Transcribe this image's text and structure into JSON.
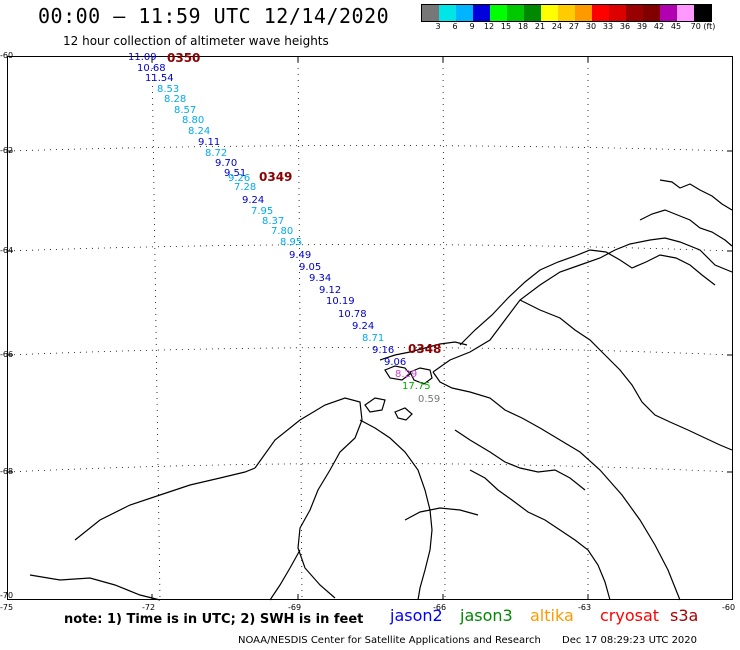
{
  "header": {
    "title": "00:00 – 11:59 UTC 12/14/2020",
    "subtitle": "12 hour collection of altimeter wave heights"
  },
  "colorbar": {
    "colors": [
      "#777777",
      "#00e5e5",
      "#00b4ff",
      "#0000dd",
      "#00ff00",
      "#00c800",
      "#008800",
      "#ffff00",
      "#ffcc00",
      "#ff9900",
      "#ff0000",
      "#dd0000",
      "#990000",
      "#800000",
      "#b000b0",
      "#ff99ff",
      "#000000"
    ],
    "labels": [
      "3",
      "6",
      "9",
      "12",
      "15",
      "18",
      "21",
      "24",
      "27",
      "30",
      "33",
      "36",
      "39",
      "42",
      "45",
      "70 (ft)"
    ]
  },
  "axes": {
    "lat_labels": [
      "-60",
      "-62",
      "-64",
      "-66",
      "-68",
      "-70"
    ],
    "lon_labels": [
      "-75",
      "-72",
      "-69",
      "-66",
      "-63",
      "-60"
    ]
  },
  "passes": [
    {
      "label": "0350",
      "color": "#8b0000"
    },
    {
      "label": "0349",
      "color": "#8b0000"
    },
    {
      "label": "0348",
      "color": "#8b0000"
    }
  ],
  "track_values": [
    {
      "v": "11.09",
      "c": "#0000cc"
    },
    {
      "v": "10.68",
      "c": "#0000cc"
    },
    {
      "v": "11.54",
      "c": "#0000cc"
    },
    {
      "v": "8.53",
      "c": "#00aaee"
    },
    {
      "v": "8.28",
      "c": "#00aaee"
    },
    {
      "v": "8.57",
      "c": "#00aaee"
    },
    {
      "v": "8.80",
      "c": "#00aaee"
    },
    {
      "v": "8.24",
      "c": "#00aaee"
    },
    {
      "v": "9.11",
      "c": "#0000cc"
    },
    {
      "v": "8.72",
      "c": "#00aaee"
    },
    {
      "v": "9.70",
      "c": "#0000cc"
    },
    {
      "v": "9.51",
      "c": "#0000cc"
    },
    {
      "v": "9.26",
      "c": "#00aaee"
    },
    {
      "v": "7.28",
      "c": "#00aaee"
    },
    {
      "v": "9.24",
      "c": "#0000cc"
    },
    {
      "v": "7.95",
      "c": "#00aaee"
    },
    {
      "v": "8.37",
      "c": "#00aaee"
    },
    {
      "v": "7.80",
      "c": "#00aaee"
    },
    {
      "v": "8.95",
      "c": "#00aaee"
    },
    {
      "v": "9.49",
      "c": "#0000cc"
    },
    {
      "v": "9.05",
      "c": "#0000cc"
    },
    {
      "v": "9.34",
      "c": "#0000cc"
    },
    {
      "v": "9.12",
      "c": "#0000cc"
    },
    {
      "v": "10.19",
      "c": "#0000cc"
    },
    {
      "v": "10.78",
      "c": "#0000cc"
    },
    {
      "v": "9.24",
      "c": "#0000cc"
    },
    {
      "v": "8.71",
      "c": "#00aaee"
    },
    {
      "v": "9.16",
      "c": "#0000cc"
    },
    {
      "v": "9.06",
      "c": "#0000cc"
    },
    {
      "v": "8.29",
      "c": "#cc44cc"
    },
    {
      "v": "17.75",
      "c": "#00aa00"
    },
    {
      "v": "0.59",
      "c": "#777777"
    }
  ],
  "footer": {
    "note": "note:  1) Time is in UTC;  2) SWH is in feet",
    "legend": [
      {
        "name": "jason2",
        "color": "#0000ff"
      },
      {
        "name": "jason3",
        "color": "#008800"
      },
      {
        "name": "altika",
        "color": "#ff9900"
      },
      {
        "name": "cryosat",
        "color": "#ff0000"
      },
      {
        "name": "s3a",
        "color": "#aa0000"
      }
    ],
    "credit": "NOAA/NESDIS Center for Satellite Applications and Research",
    "timestamp": "Dec 17 08:29:23 UTC 2020"
  }
}
